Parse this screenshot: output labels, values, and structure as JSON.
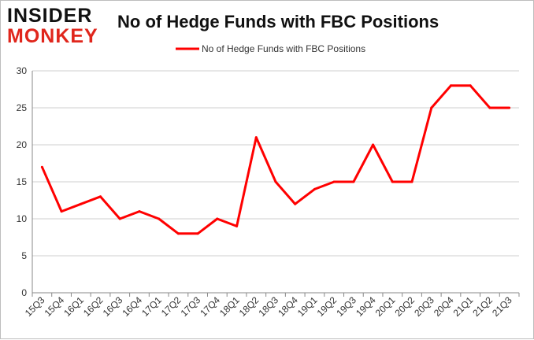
{
  "logo": {
    "line1": "INSIDER",
    "line2": "MONKEY"
  },
  "chart_data": {
    "type": "line",
    "title": "No of Hedge Funds with FBC Positions",
    "xlabel": "",
    "ylabel": "",
    "categories": [
      "15Q3",
      "15Q4",
      "16Q1",
      "16Q2",
      "16Q3",
      "16Q4",
      "17Q1",
      "17Q2",
      "17Q3",
      "17Q4",
      "18Q1",
      "18Q2",
      "18Q3",
      "18Q4",
      "19Q1",
      "19Q2",
      "19Q3",
      "19Q4",
      "20Q1",
      "20Q2",
      "20Q3",
      "20Q4",
      "21Q1",
      "21Q2",
      "21Q3"
    ],
    "series": [
      {
        "name": "No of Hedge Funds with FBC Positions",
        "color": "#ff0000",
        "values": [
          17,
          11,
          12,
          13,
          10,
          11,
          10,
          8,
          8,
          10,
          9,
          21,
          15,
          12,
          14,
          15,
          15,
          20,
          15,
          15,
          25,
          28,
          28,
          25,
          25
        ]
      }
    ],
    "ylim": [
      0,
      30
    ],
    "yticks": [
      0,
      5,
      10,
      15,
      20,
      25,
      30
    ],
    "grid": true,
    "legend": "top-center"
  }
}
